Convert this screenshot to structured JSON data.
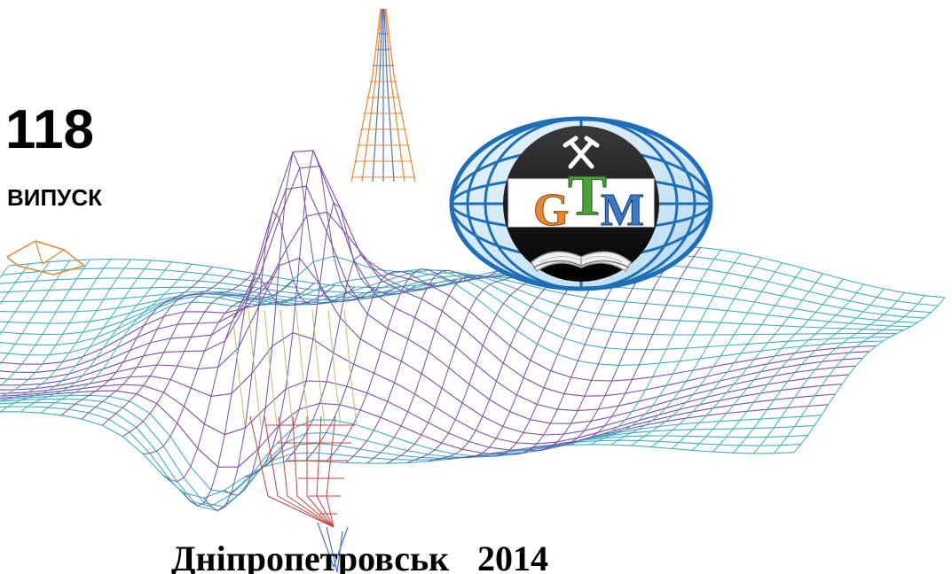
{
  "issue": {
    "number": "118",
    "label": "ВИПУСК"
  },
  "logo": {
    "letters": [
      "G",
      "T",
      "M"
    ],
    "icon": "hammer-and-pick-icon",
    "book_icon": "open-book-icon"
  },
  "footer": {
    "city": "Дніпропетровськ",
    "year": "2014"
  },
  "colors": {
    "mesh_teal": "#3fb0c0",
    "mesh_purple": "#7a4fa8",
    "mesh_orange": "#e8872e",
    "mesh_red": "#c8403a",
    "mesh_green": "#a9c96a",
    "mesh_blue": "#4a72c8",
    "globe_blue": "#1f6fb8",
    "letter_g": "#e8872e",
    "letter_t": "#49a13a",
    "letter_m": "#3a78c8"
  }
}
